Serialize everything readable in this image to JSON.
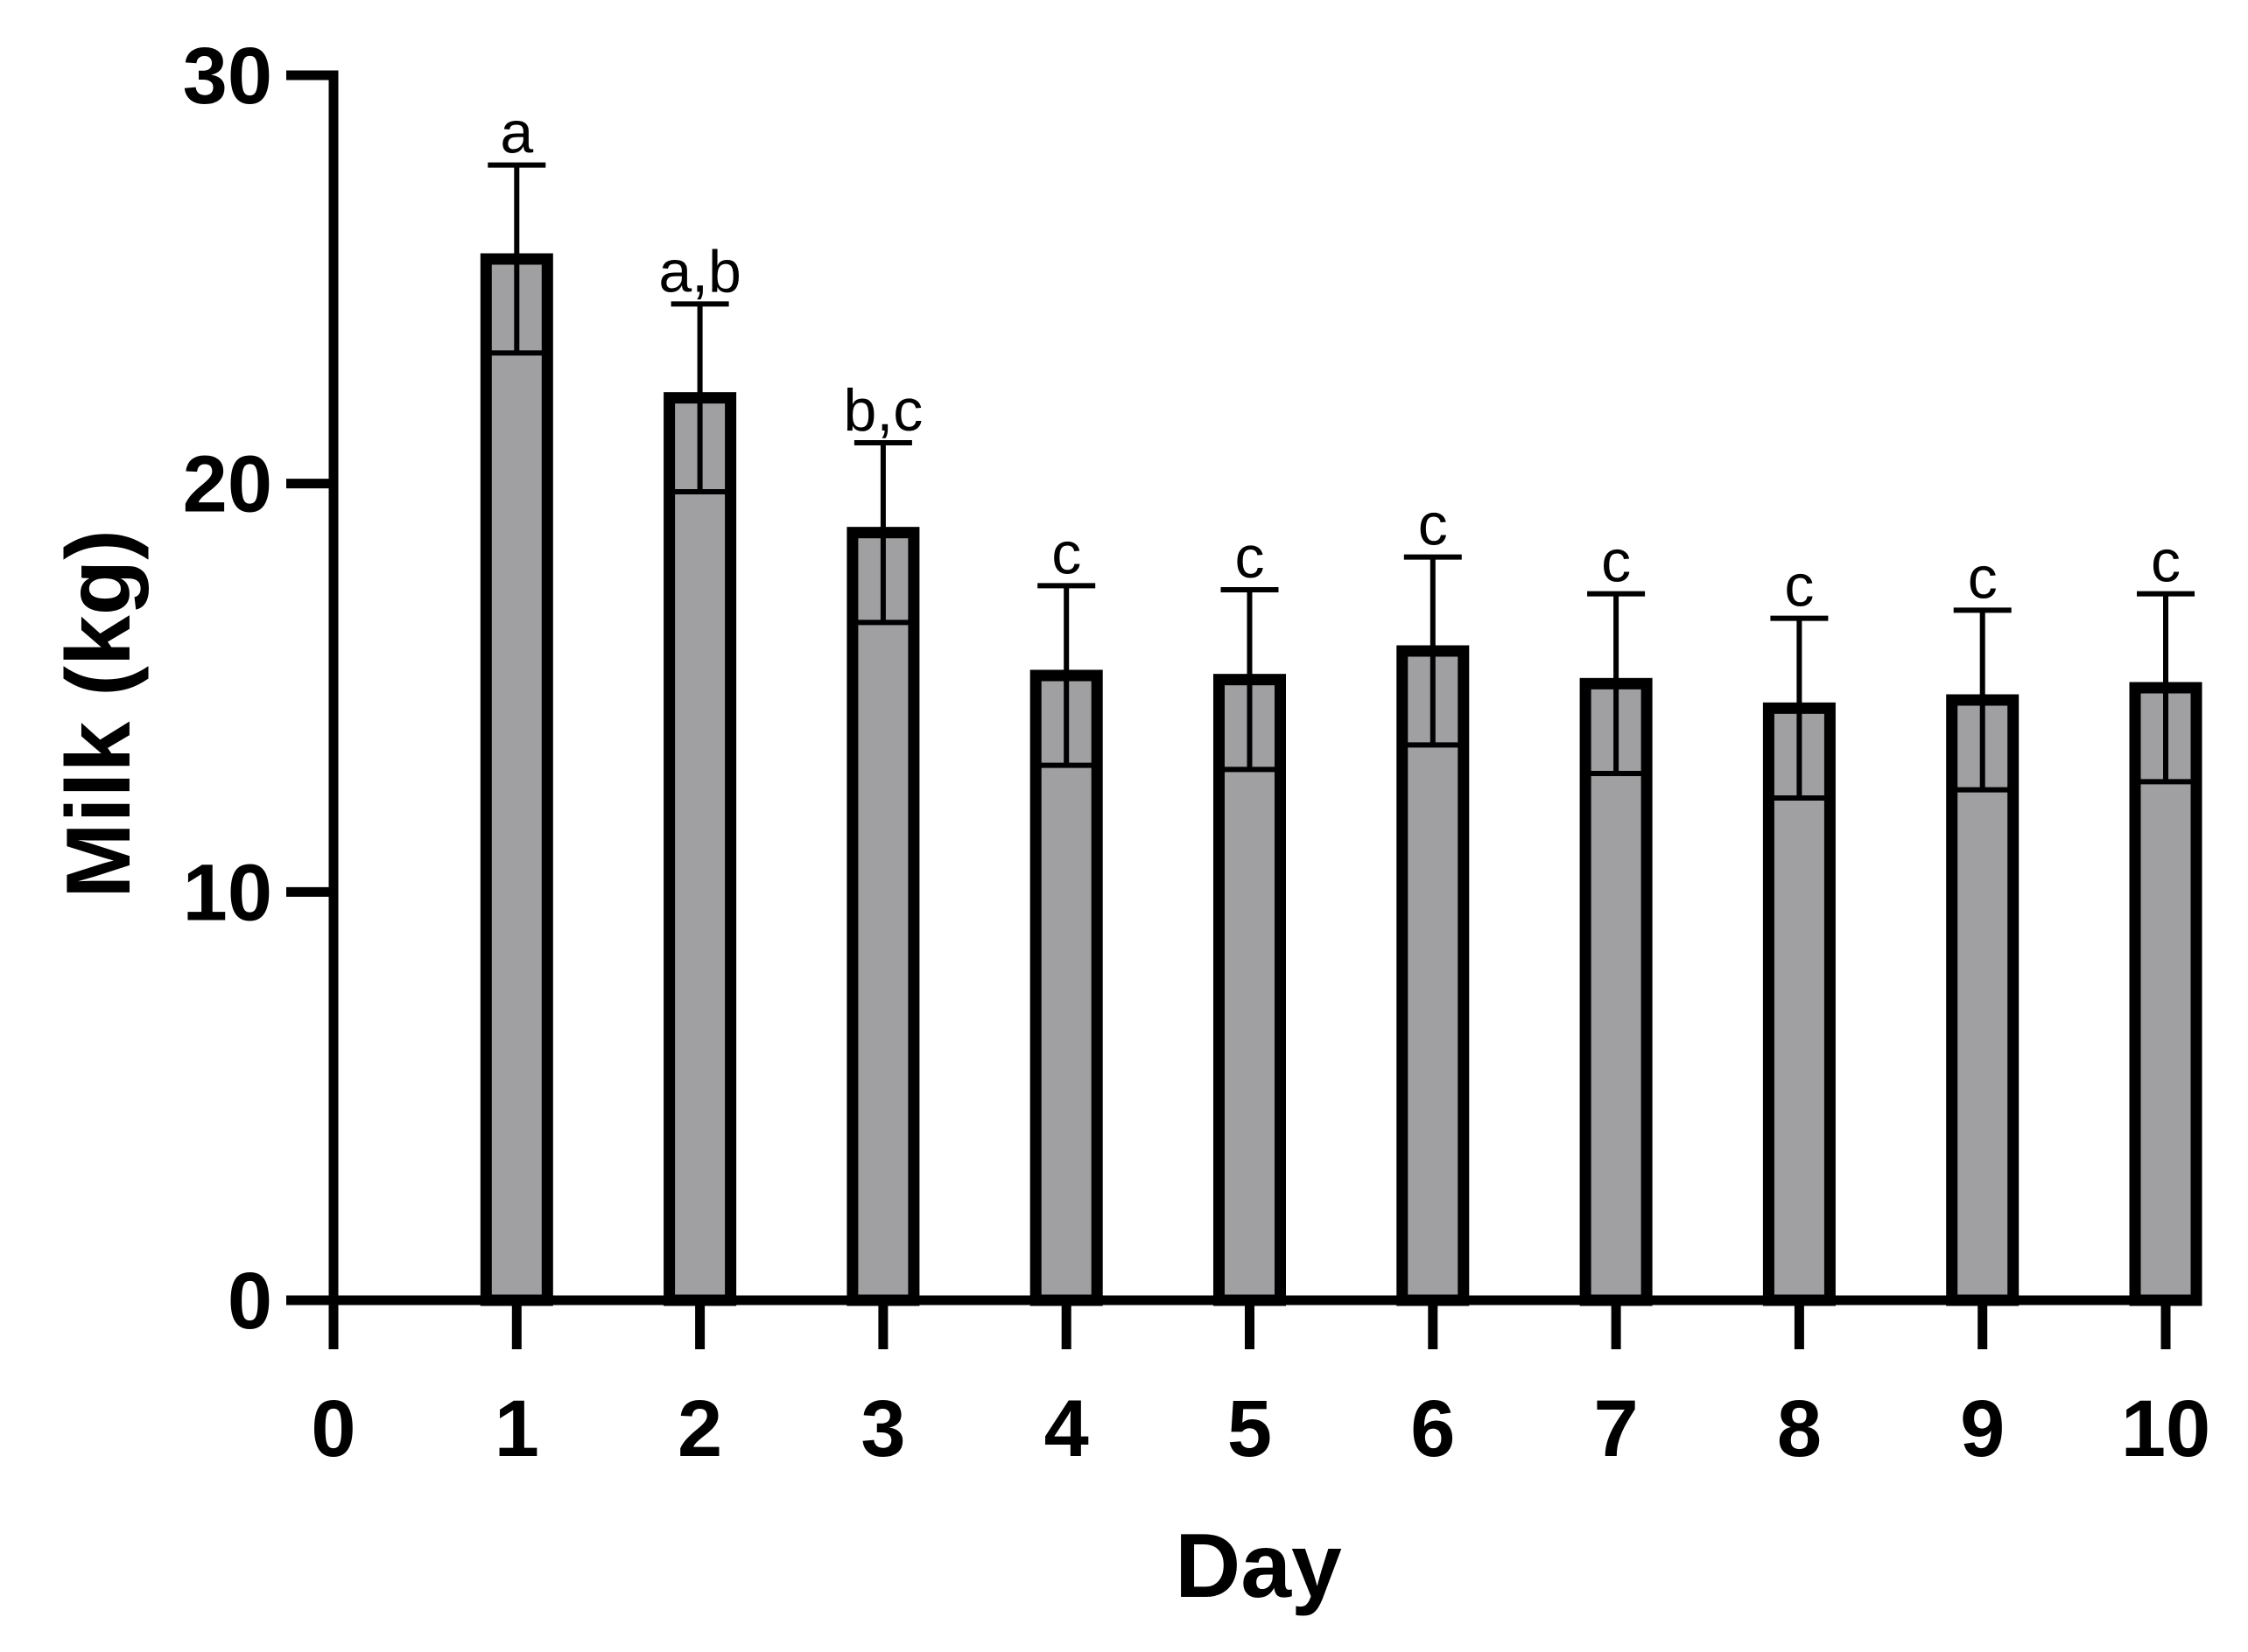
{
  "chart_data": {
    "type": "bar",
    "xlabel": "Day",
    "ylabel": "Milk (kg)",
    "xlim": [
      0,
      10
    ],
    "ylim": [
      0,
      30
    ],
    "x_ticks": [
      "0",
      "1",
      "2",
      "3",
      "4",
      "5",
      "6",
      "7",
      "8",
      "9",
      "10"
    ],
    "y_ticks": [
      "0",
      "10",
      "20",
      "30"
    ],
    "grid": false,
    "legend": "none",
    "bar_color": "#a0a0a2",
    "bars": [
      {
        "day": 1,
        "value": 25.5,
        "error": 2.3,
        "label": "a"
      },
      {
        "day": 2,
        "value": 22.1,
        "error": 2.3,
        "label": "a,b"
      },
      {
        "day": 3,
        "value": 18.8,
        "error": 2.2,
        "label": "b,c"
      },
      {
        "day": 4,
        "value": 15.3,
        "error": 2.2,
        "label": "c"
      },
      {
        "day": 5,
        "value": 15.2,
        "error": 2.2,
        "label": "c"
      },
      {
        "day": 6,
        "value": 15.9,
        "error": 2.3,
        "label": "c"
      },
      {
        "day": 7,
        "value": 15.1,
        "error": 2.2,
        "label": "c"
      },
      {
        "day": 8,
        "value": 14.5,
        "error": 2.2,
        "label": "c"
      },
      {
        "day": 9,
        "value": 14.7,
        "error": 2.2,
        "label": "c"
      },
      {
        "day": 10,
        "value": 15.0,
        "error": 2.3,
        "label": "c"
      }
    ]
  }
}
